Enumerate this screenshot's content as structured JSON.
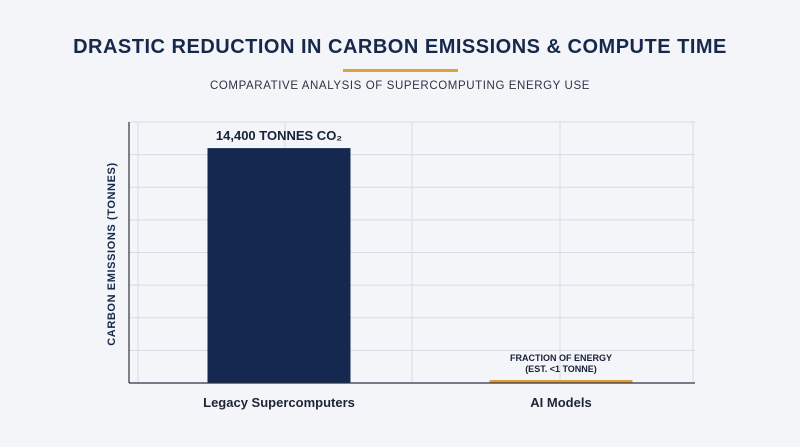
{
  "header": {
    "title": "DRASTIC REDUCTION IN CARBON EMISSIONS & COMPUTE TIME",
    "subtitle": "COMPARATIVE ANALYSIS OF SUPERCOMPUTING ENERGY USE"
  },
  "colors": {
    "title": "#16294d",
    "accent": "#e0a23c",
    "bar_legacy": "#15284f",
    "bar_ai": "#dc9d3a",
    "grid": "#d7dbe2",
    "axis": "#2a3346"
  },
  "chart_data": {
    "type": "bar",
    "title": "DRASTIC REDUCTION IN CARBON EMISSIONS & COMPUTE TIME",
    "subtitle": "COMPARATIVE ANALYSIS OF SUPERCOMPUTING ENERGY USE",
    "xlabel": "",
    "ylabel": "CARBON EMISSIONS (TONNES)",
    "categories": [
      "Legacy Supercomputers",
      "AI Models"
    ],
    "values": [
      14400,
      1
    ],
    "data_labels": [
      [
        "14,400 TONNES CO₂"
      ],
      [
        "FRACTION OF ENERGY",
        "(EST. <1 TONNE)"
      ]
    ],
    "ylim": [
      0,
      16000
    ],
    "grid": true,
    "legend": "none"
  }
}
